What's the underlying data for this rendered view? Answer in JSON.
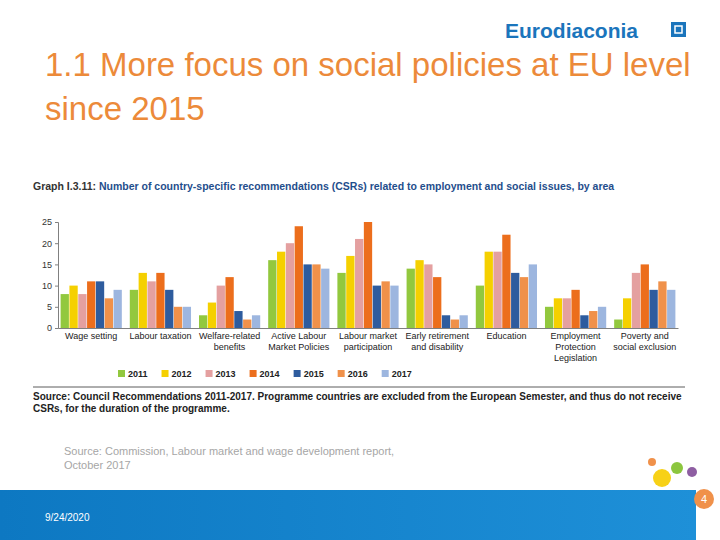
{
  "slide": {
    "logo": "Eurodiaconia",
    "heading": "1.1 More focus on social policies at EU level since 2015",
    "source": "Source: Commission, Labour market and wage development report, October 2017",
    "date": "9/24/2020",
    "page": "4"
  },
  "chart_data": {
    "type": "bar",
    "title": "Graph I.3.11: Number of country-specific recommendations (CSRs) related to employment and social issues, by area",
    "annotations": [
      "Source: Council Recommendations 2011-2017. Programme countries are excluded from the European Semester, and thus do not receive CSRs, for the duration of the programme."
    ],
    "categories": [
      "Wage setting",
      "Labour taxation",
      "Welfare-related benefits",
      "Active Labour Market Policies",
      "Labour market participation",
      "Early retirement and disability",
      "Education",
      "Employment Protection Legislation",
      "Poverty and social exclusion"
    ],
    "series": [
      {
        "name": "2011",
        "color": "#92c83e",
        "values": [
          8,
          9,
          3,
          16,
          13,
          14,
          10,
          5,
          2
        ]
      },
      {
        "name": "2012",
        "color": "#f5d000",
        "values": [
          10,
          13,
          6,
          18,
          17,
          16,
          18,
          7,
          7
        ]
      },
      {
        "name": "2013",
        "color": "#e4a0a0",
        "values": [
          8,
          11,
          10,
          20,
          21,
          15,
          18,
          7,
          13
        ]
      },
      {
        "name": "2014",
        "color": "#ec6e1c",
        "values": [
          11,
          13,
          12,
          24,
          25,
          12,
          22,
          9,
          15
        ]
      },
      {
        "name": "2015",
        "color": "#2e5c9e",
        "values": [
          11,
          9,
          4,
          15,
          10,
          3,
          13,
          3,
          9
        ]
      },
      {
        "name": "2016",
        "color": "#f0914a",
        "values": [
          7,
          5,
          2,
          15,
          11,
          2,
          12,
          4,
          11
        ]
      },
      {
        "name": "2017",
        "color": "#9db6df",
        "values": [
          9,
          5,
          3,
          14,
          10,
          3,
          15,
          5,
          9
        ]
      }
    ],
    "ylim": [
      0,
      25
    ],
    "yticks": [
      0,
      5,
      10,
      15,
      20,
      25
    ],
    "grid": false,
    "legend": "bottom"
  }
}
